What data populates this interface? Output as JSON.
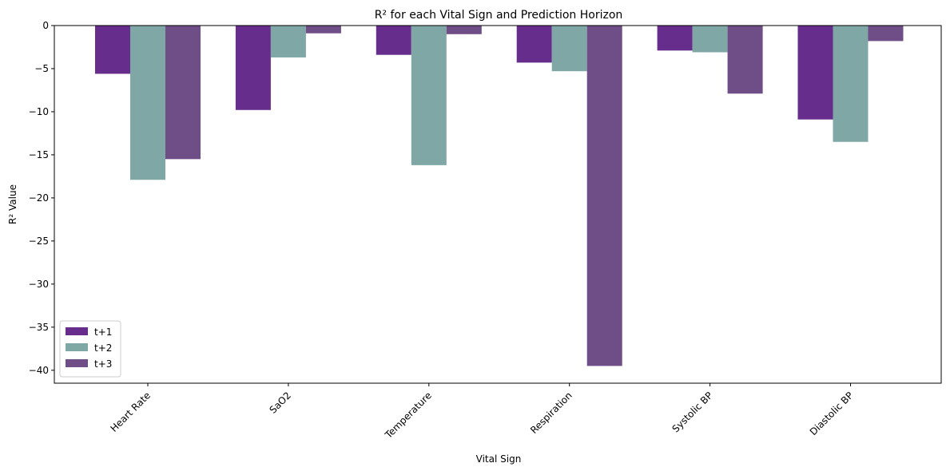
{
  "chart_data": {
    "type": "bar",
    "title": "R² for each Vital Sign and Prediction Horizon",
    "xlabel": "Vital Sign",
    "ylabel": "R² Value",
    "categories": [
      "Heart Rate",
      "SaO2",
      "Temperature",
      "Respiration",
      "Systolic BP",
      "Diastolic BP"
    ],
    "series": [
      {
        "name": "t+1",
        "color": "#662d8c",
        "values": [
          -5.6,
          -9.8,
          -3.4,
          -4.3,
          -2.9,
          -10.9
        ]
      },
      {
        "name": "t+2",
        "color": "#7fa7a5",
        "values": [
          -17.9,
          -3.7,
          -16.2,
          -5.3,
          -3.1,
          -13.5
        ]
      },
      {
        "name": "t+3",
        "color": "#6f4e87",
        "values": [
          -15.5,
          -0.9,
          -1.0,
          -39.5,
          -7.9,
          -1.8
        ]
      }
    ],
    "ylim": [
      -41.5,
      0
    ],
    "yticks": [
      0,
      -5,
      -10,
      -15,
      -20,
      -25,
      -30,
      -35,
      -40
    ],
    "ytick_labels": [
      "0",
      "−5",
      "−10",
      "−15",
      "−20",
      "−25",
      "−30",
      "−35",
      "−40"
    ],
    "xtick_rotation": 45,
    "legend_position": "lower-left",
    "grid": false
  }
}
